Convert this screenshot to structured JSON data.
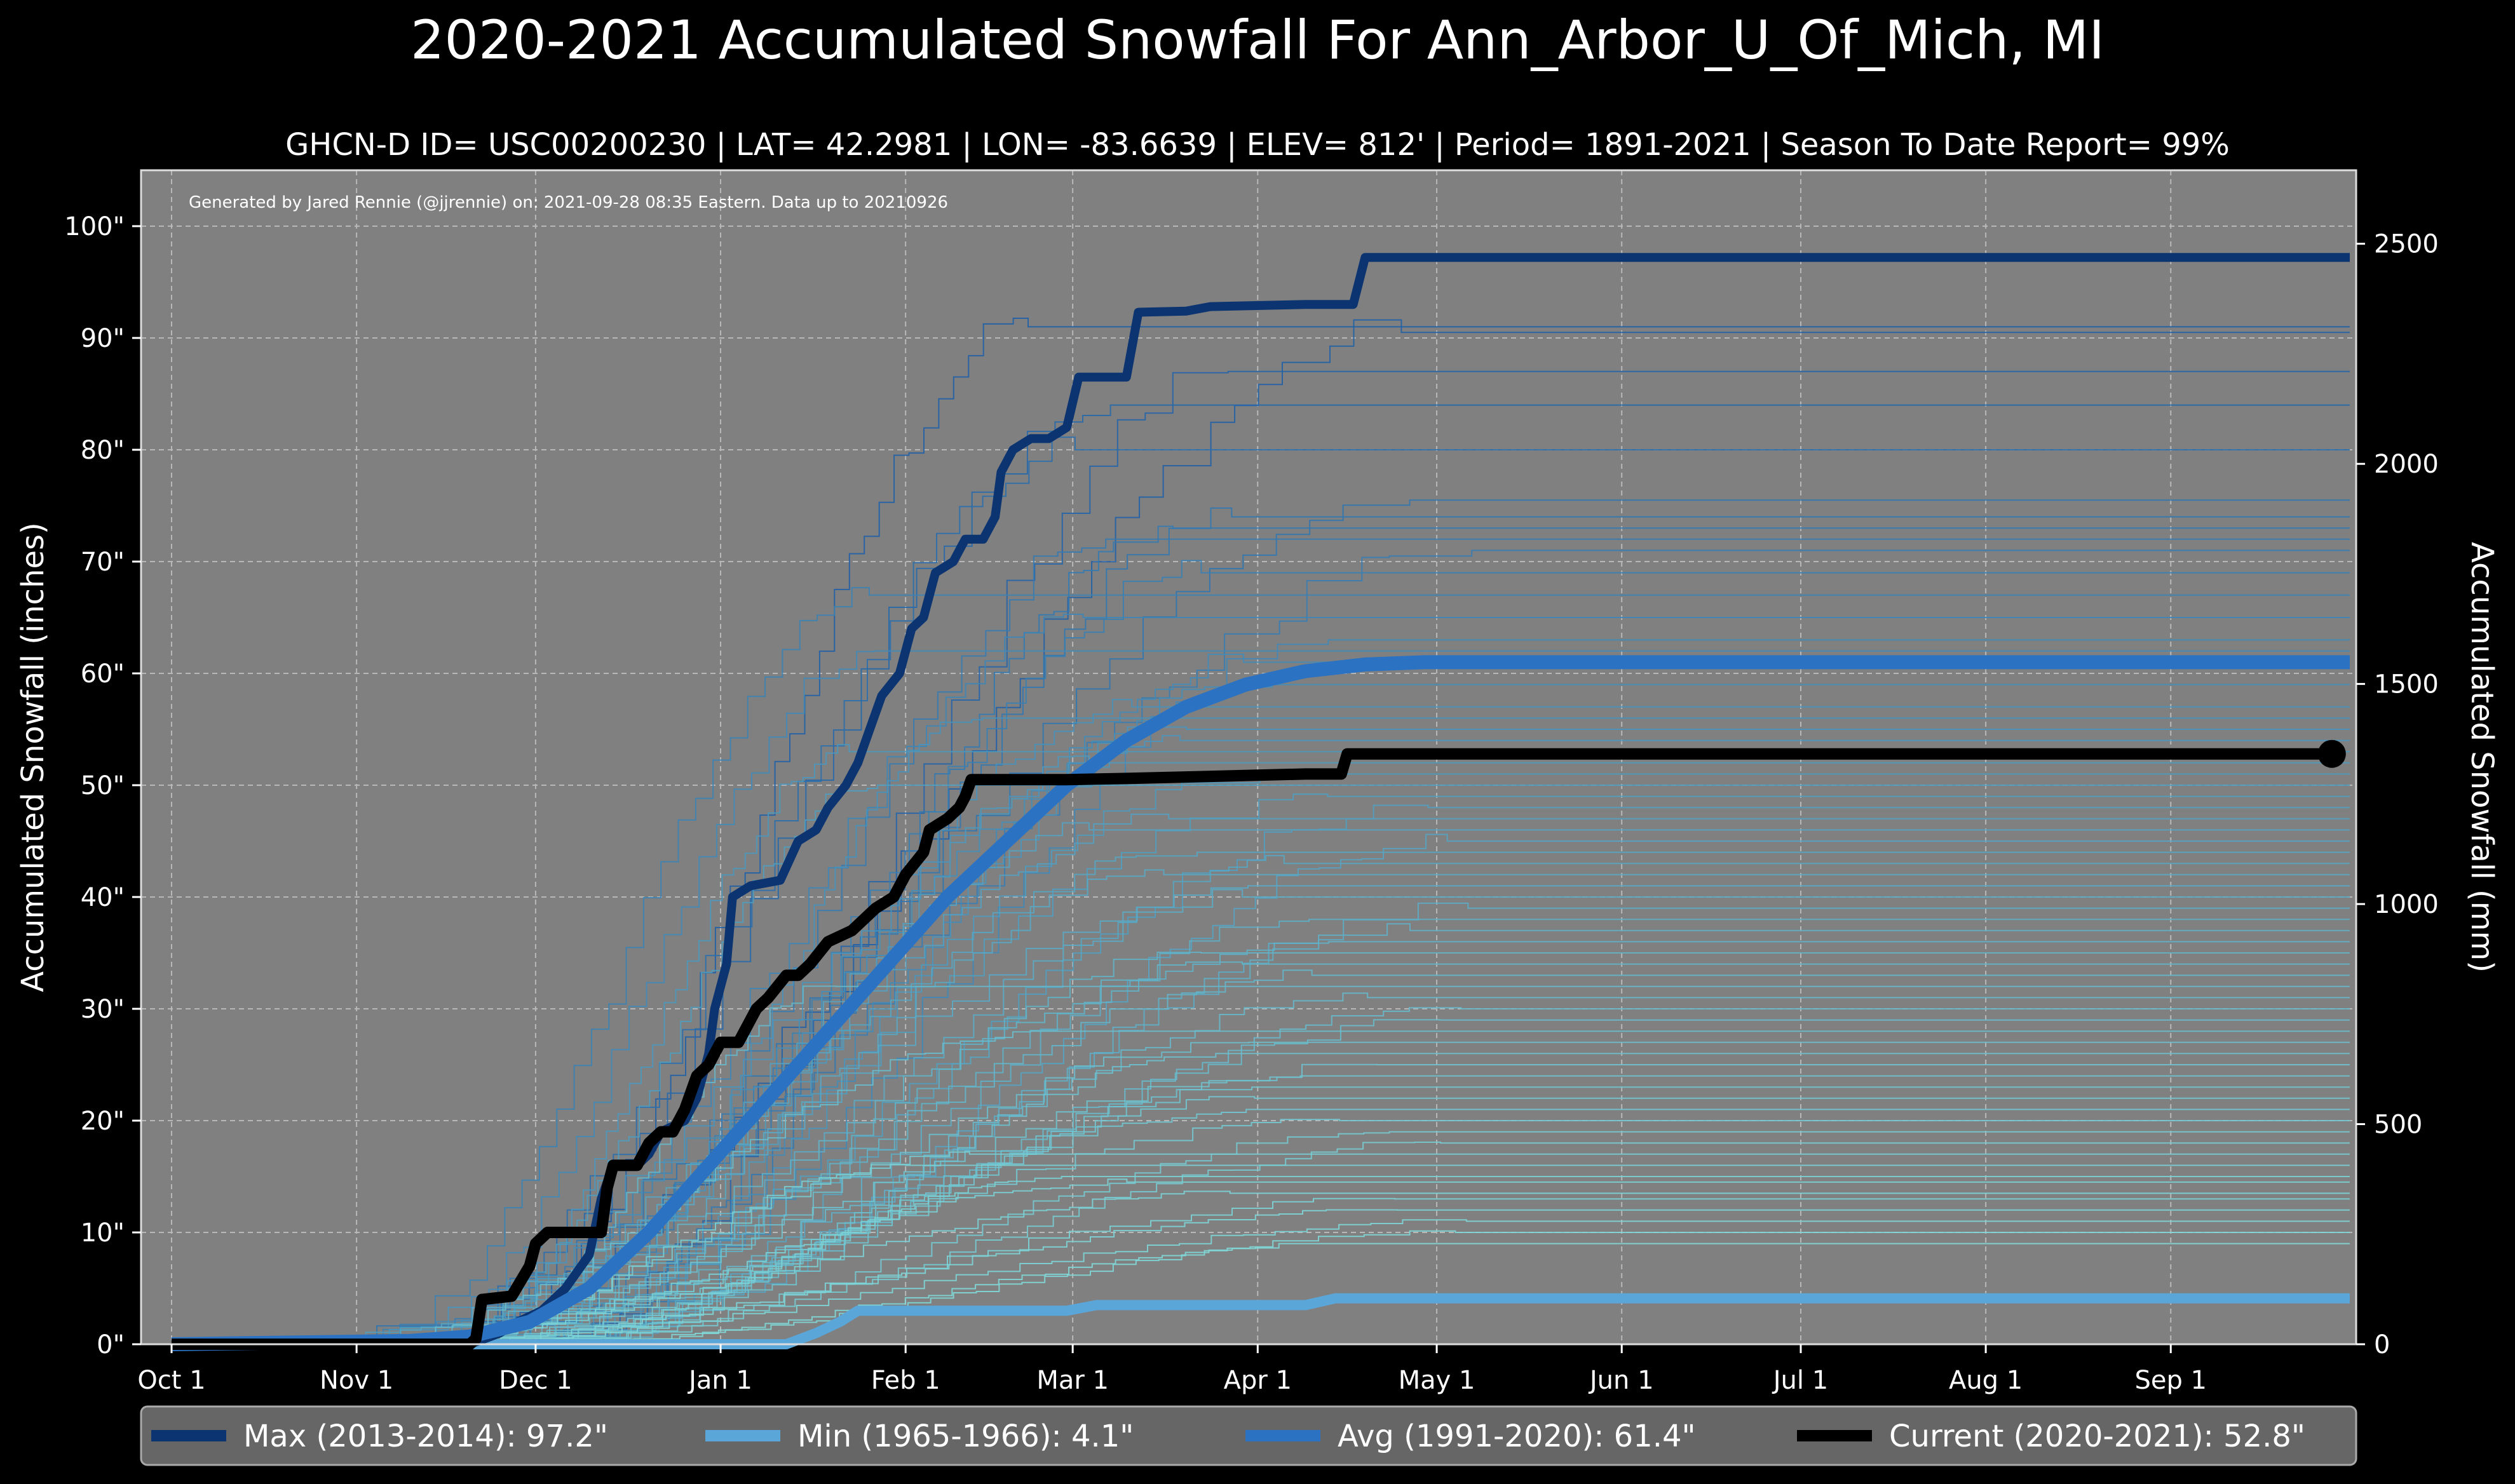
{
  "chart_data": {
    "type": "line",
    "title": "2020-2021 Accumulated Snowfall For Ann_Arbor_U_Of_Mich, MI",
    "subtitle": "GHCN-D ID= USC00200230 | LAT= 42.2981 | LON= -83.6639 | ELEV= 812' | Period= 1891-2021 | Season To Date Report= 99%",
    "credit": "Generated by Jared Rennie (@jjrennie) on: 2021-09-28 08:35 Eastern. Data up to 20210926",
    "ylabel": "Accumulated Snowfall (inches)",
    "ylabel_right": "Accumulated Snowfall (mm)",
    "xlabel": "",
    "xlim_days": [
      0,
      365
    ],
    "ylim": [
      0,
      105
    ],
    "ylim_right_mm": [
      0,
      2667
    ],
    "grid": true,
    "x_ticks": [
      {
        "day": 0,
        "label": "Oct 1"
      },
      {
        "day": 31,
        "label": "Nov 1"
      },
      {
        "day": 61,
        "label": "Dec 1"
      },
      {
        "day": 92,
        "label": "Jan 1"
      },
      {
        "day": 123,
        "label": "Feb 1"
      },
      {
        "day": 151,
        "label": "Mar 1"
      },
      {
        "day": 182,
        "label": "Apr 1"
      },
      {
        "day": 212,
        "label": "May 1"
      },
      {
        "day": 243,
        "label": "Jun 1"
      },
      {
        "day": 273,
        "label": "Jul 1"
      },
      {
        "day": 304,
        "label": "Aug 1"
      },
      {
        "day": 335,
        "label": "Sep 1"
      }
    ],
    "y_ticks": [
      {
        "value": 0,
        "label": "0\""
      },
      {
        "value": 10,
        "label": "10\""
      },
      {
        "value": 20,
        "label": "20\""
      },
      {
        "value": 30,
        "label": "30\""
      },
      {
        "value": 40,
        "label": "40\""
      },
      {
        "value": 50,
        "label": "50\""
      },
      {
        "value": 60,
        "label": "60\""
      },
      {
        "value": 70,
        "label": "70\""
      },
      {
        "value": 80,
        "label": "80\""
      },
      {
        "value": 90,
        "label": "90\""
      },
      {
        "value": 100,
        "label": "100\""
      }
    ],
    "y_ticks_right": [
      {
        "value": 0,
        "label": "0"
      },
      {
        "value": 500,
        "label": "500"
      },
      {
        "value": 1000,
        "label": "1000"
      },
      {
        "value": 1500,
        "label": "1500"
      },
      {
        "value": 2000,
        "label": "2000"
      },
      {
        "value": 2500,
        "label": "2500"
      }
    ],
    "series": [
      {
        "name": "Max (2013-2014)",
        "legend": "Max (2013-2014):   97.2\"",
        "color": "#0c3470",
        "width": 14,
        "points": [
          [
            0,
            0
          ],
          [
            50,
            0
          ],
          [
            55,
            1
          ],
          [
            58,
            2
          ],
          [
            62,
            3
          ],
          [
            66,
            5
          ],
          [
            70,
            8
          ],
          [
            72,
            13
          ],
          [
            74,
            16
          ],
          [
            78,
            16
          ],
          [
            80,
            17
          ],
          [
            82,
            19
          ],
          [
            86,
            20
          ],
          [
            88,
            22
          ],
          [
            90,
            26
          ],
          [
            91,
            30
          ],
          [
            93,
            34
          ],
          [
            94,
            40
          ],
          [
            97,
            41
          ],
          [
            102,
            41.5
          ],
          [
            105,
            45
          ],
          [
            108,
            46
          ],
          [
            110,
            48
          ],
          [
            113,
            50
          ],
          [
            115,
            52
          ],
          [
            117,
            55
          ],
          [
            119,
            58
          ],
          [
            122,
            60
          ],
          [
            124,
            64
          ],
          [
            126,
            65
          ],
          [
            128,
            69
          ],
          [
            131,
            70
          ],
          [
            133,
            72
          ],
          [
            136,
            72
          ],
          [
            138,
            74
          ],
          [
            139,
            78
          ],
          [
            141,
            80
          ],
          [
            144,
            81
          ],
          [
            147,
            81
          ],
          [
            150,
            82
          ],
          [
            152,
            86.5
          ],
          [
            160,
            86.5
          ],
          [
            162,
            92.3
          ],
          [
            170,
            92.4
          ],
          [
            174,
            92.8
          ],
          [
            190,
            93
          ],
          [
            198,
            93
          ],
          [
            200,
            97.2
          ],
          [
            365,
            97.2
          ]
        ]
      },
      {
        "name": "Avg (1991-2020)",
        "legend": "Avg (1991-2020):   61.4\"",
        "color": "#2b73c2",
        "width": 22,
        "points": [
          [
            0,
            0
          ],
          [
            40,
            0.3
          ],
          [
            50,
            0.7
          ],
          [
            60,
            2
          ],
          [
            70,
            5
          ],
          [
            80,
            10
          ],
          [
            90,
            16
          ],
          [
            100,
            22
          ],
          [
            110,
            28
          ],
          [
            120,
            34
          ],
          [
            130,
            40
          ],
          [
            140,
            45
          ],
          [
            150,
            50
          ],
          [
            160,
            54
          ],
          [
            170,
            57
          ],
          [
            180,
            59
          ],
          [
            190,
            60.2
          ],
          [
            200,
            60.8
          ],
          [
            210,
            61
          ],
          [
            220,
            61
          ],
          [
            365,
            61
          ]
        ]
      },
      {
        "name": "Min (1965-1966)",
        "legend": "Min (1965-1966):    4.1\"",
        "color": "#5ba6d9",
        "width": 16,
        "points": [
          [
            0,
            0
          ],
          [
            103,
            0
          ],
          [
            108,
            1
          ],
          [
            112,
            2
          ],
          [
            115,
            3
          ],
          [
            125,
            3
          ],
          [
            150,
            3
          ],
          [
            155,
            3.5
          ],
          [
            190,
            3.5
          ],
          [
            195,
            4.1
          ],
          [
            365,
            4.1
          ]
        ]
      },
      {
        "name": "Current (2020-2021)",
        "legend": "Current (2020-2021):   52.8\"",
        "color": "#000000",
        "width": 18,
        "points": [
          [
            0,
            0
          ],
          [
            50,
            0
          ],
          [
            51,
            0.5
          ],
          [
            52,
            4
          ],
          [
            57,
            4.3
          ],
          [
            60,
            7
          ],
          [
            61,
            9
          ],
          [
            63,
            10
          ],
          [
            72,
            10
          ],
          [
            73,
            14
          ],
          [
            74,
            16
          ],
          [
            78,
            16
          ],
          [
            80,
            18
          ],
          [
            82,
            19
          ],
          [
            84,
            19
          ],
          [
            86,
            21
          ],
          [
            88,
            24
          ],
          [
            90,
            25
          ],
          [
            92,
            27
          ],
          [
            95,
            27
          ],
          [
            98,
            30
          ],
          [
            100,
            31
          ],
          [
            103,
            33
          ],
          [
            105,
            33
          ],
          [
            107,
            34
          ],
          [
            110,
            36
          ],
          [
            114,
            37
          ],
          [
            118,
            39
          ],
          [
            121,
            40
          ],
          [
            123,
            42
          ],
          [
            126,
            44
          ],
          [
            127,
            46
          ],
          [
            130,
            47
          ],
          [
            132,
            48
          ],
          [
            133,
            49
          ],
          [
            134,
            50.5
          ],
          [
            150,
            50.5
          ],
          [
            160,
            50.6
          ],
          [
            190,
            51
          ],
          [
            196,
            51
          ],
          [
            197,
            52.8
          ],
          [
            362,
            52.8
          ]
        ],
        "endpoint_marker": true
      },
      {
        "name": "Historical seasons",
        "color": "#3f8ed0",
        "width": 2,
        "finals": [
          91,
          90.5,
          87,
          84,
          80,
          75.5,
          74,
          73,
          72,
          71,
          69,
          67,
          65,
          63,
          62,
          61,
          59,
          57,
          56,
          55,
          54,
          53,
          52,
          51,
          50,
          49,
          48,
          47,
          46,
          45,
          44,
          43,
          42,
          41,
          40,
          39,
          38,
          37,
          36,
          35,
          34,
          33,
          32,
          31,
          30,
          29,
          28,
          27,
          26,
          25,
          24,
          23,
          22,
          21,
          20,
          19,
          18,
          17,
          16,
          15,
          14.5,
          13.5,
          13,
          12,
          11,
          10,
          9
        ]
      }
    ]
  }
}
